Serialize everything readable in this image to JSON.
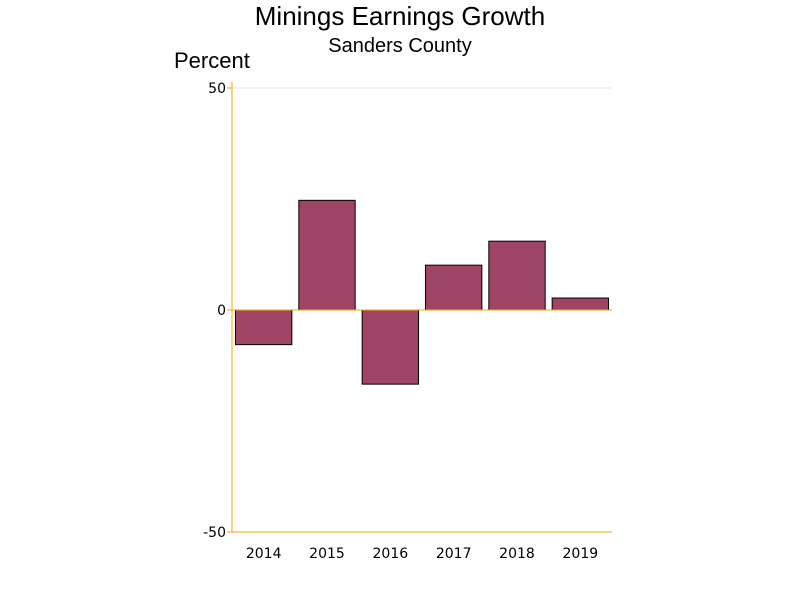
{
  "chart_data": {
    "type": "bar",
    "title": "Minings Earnings Growth",
    "subtitle": "Sanders County",
    "ylabel": "Percent",
    "xlabel": "",
    "categories": [
      "2014",
      "2015",
      "2016",
      "2017",
      "2018",
      "2019"
    ],
    "values": [
      -7.8,
      24.7,
      -16.7,
      10.1,
      15.5,
      2.7
    ],
    "ylim": [
      -50,
      50
    ],
    "yticks": [
      "50",
      "0",
      "-50"
    ],
    "grid": true,
    "legend": "none",
    "colors": {
      "bar": "#a04466",
      "bar_edge": "#000000",
      "axis": "#f0a800",
      "grid": "#e6e6e6"
    }
  }
}
